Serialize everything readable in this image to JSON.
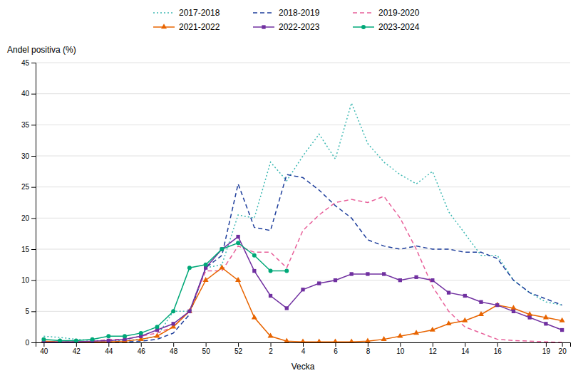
{
  "chart_data": {
    "type": "line",
    "x_label": "Vecka",
    "y_label": "Andel positiva (%)",
    "categories": [
      "40",
      null,
      "42",
      null,
      "44",
      null,
      "46",
      null,
      "48",
      null,
      "50",
      null,
      "52",
      null,
      "2",
      null,
      "4",
      null,
      "6",
      null,
      "8",
      null,
      "10",
      null,
      "12",
      null,
      "14",
      null,
      "16",
      null,
      null,
      "19",
      "20"
    ],
    "ylim": [
      0,
      45
    ],
    "yticks": [
      0,
      5,
      10,
      15,
      20,
      25,
      30,
      35,
      40,
      45
    ],
    "grid": true,
    "legend": "top",
    "series": [
      {
        "name": "2017-2018",
        "color": "#3CB8B2",
        "line_style": "dotted",
        "values": [
          1.0,
          0.8,
          0.5,
          0.3,
          0.3,
          0.3,
          0.5,
          1.0,
          5.0,
          5.0,
          12.0,
          12.5,
          20.5,
          20.0,
          29.0,
          26.0,
          30.0,
          33.5,
          29.5,
          38.5,
          32.0,
          29.0,
          27.0,
          25.5,
          27.5,
          21.0,
          17.5,
          14.0,
          14.0,
          10.0,
          8.0,
          6.5,
          6.0
        ]
      },
      {
        "name": "2018-2019",
        "color": "#1F3F9C",
        "line_style": "dashed",
        "values": [
          0.1,
          0.1,
          0.1,
          0.1,
          0.1,
          0.1,
          0.2,
          0.5,
          1.5,
          4.5,
          12.0,
          14.0,
          25.5,
          18.5,
          18.0,
          27.0,
          26.5,
          24.5,
          22.0,
          20.0,
          16.5,
          15.5,
          15.0,
          15.5,
          15.0,
          15.0,
          14.5,
          14.5,
          13.5,
          10.0,
          8.0,
          7.0,
          6.0
        ]
      },
      {
        "name": "2019-2020",
        "color": "#E8609A",
        "line_style": "dashed",
        "values": [
          0.0,
          0.0,
          0.1,
          0.1,
          0.5,
          0.5,
          1.0,
          1.5,
          2.5,
          5.0,
          11.5,
          11.5,
          15.5,
          14.5,
          14.5,
          12.0,
          18.0,
          20.5,
          22.5,
          23.0,
          22.5,
          23.5,
          20.0,
          15.0,
          9.0,
          5.0,
          2.5,
          1.5,
          0.5,
          0.3,
          0.2,
          0.1,
          0.0
        ]
      },
      {
        "name": "2021-2022",
        "color": "#E86400",
        "line_style": "solid",
        "marker": "triangle",
        "values": [
          0.2,
          0.1,
          0.1,
          0.1,
          0.1,
          0.2,
          0.5,
          1.0,
          2.5,
          5.0,
          10.0,
          12.0,
          10.0,
          4.0,
          1.0,
          0.2,
          0.1,
          0.1,
          0.1,
          0.1,
          0.2,
          0.5,
          1.0,
          1.5,
          2.0,
          3.0,
          3.5,
          4.5,
          6.0,
          5.5,
          4.5,
          4.0,
          3.5
        ]
      },
      {
        "name": "2022-2023",
        "color": "#7030A0",
        "line_style": "solid",
        "marker": "square",
        "values": [
          0.0,
          0.1,
          0.1,
          0.2,
          0.3,
          0.5,
          1.0,
          2.0,
          3.0,
          5.0,
          12.0,
          15.0,
          17.0,
          11.5,
          7.5,
          5.5,
          8.5,
          9.5,
          10.0,
          11.0,
          11.0,
          11.0,
          10.0,
          10.5,
          10.0,
          8.0,
          7.5,
          6.5,
          6.0,
          5.0,
          4.0,
          3.0,
          2.0
        ]
      },
      {
        "name": "2023-2024",
        "color": "#00A878",
        "line_style": "solid",
        "marker": "circle",
        "values": [
          0.5,
          0.3,
          0.3,
          0.5,
          1.0,
          1.0,
          1.5,
          2.5,
          5.0,
          12.0,
          12.5,
          15.0,
          16.0,
          14.0,
          11.5,
          11.5,
          null,
          null,
          null,
          null,
          null,
          null,
          null,
          null,
          null,
          null,
          null,
          null,
          null,
          null,
          null,
          null,
          null
        ]
      }
    ]
  }
}
